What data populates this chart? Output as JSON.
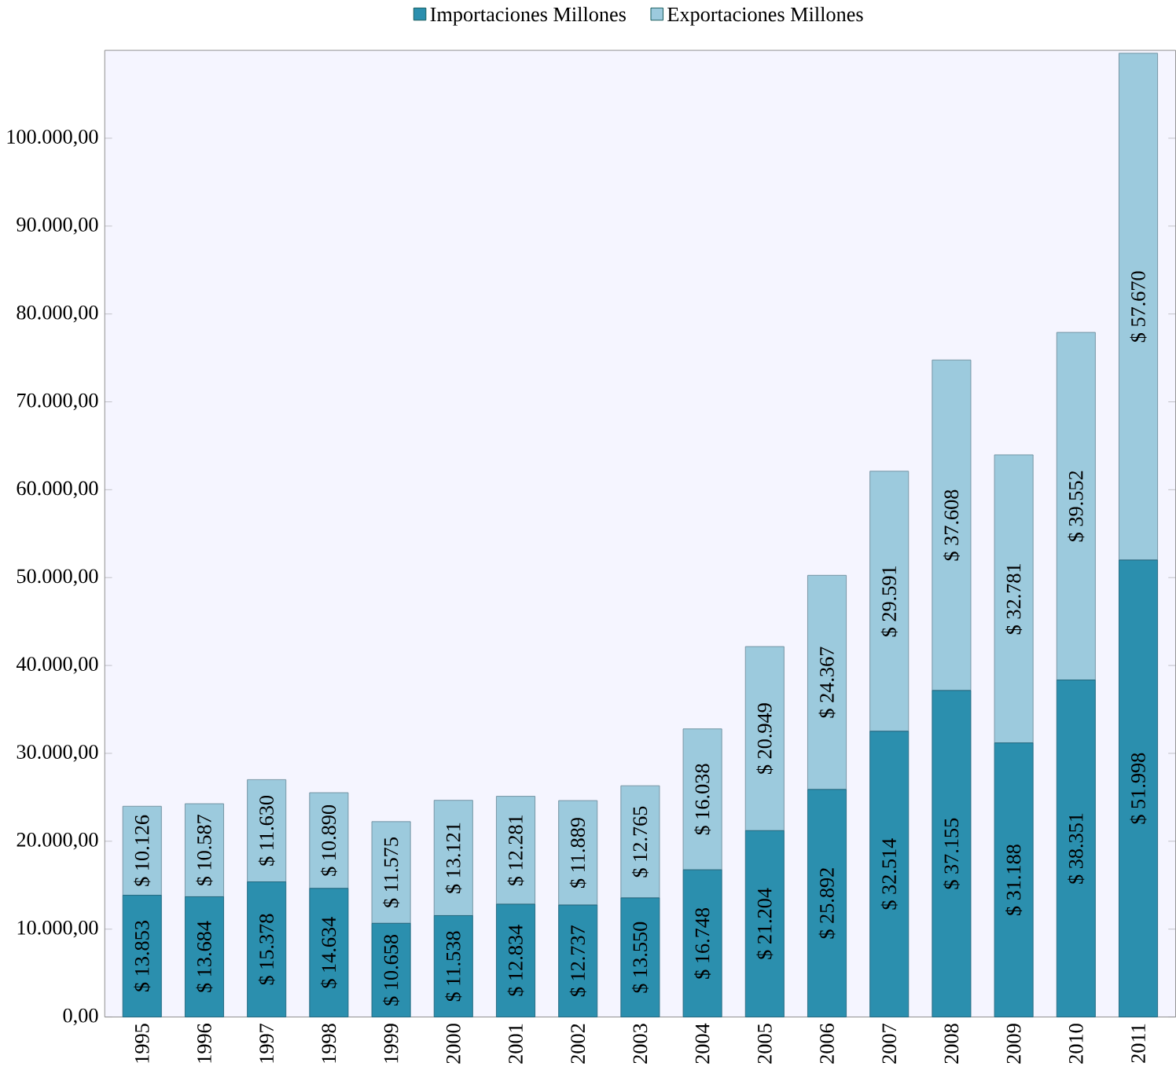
{
  "chart_data": {
    "type": "bar",
    "stacked": true,
    "legend": "top",
    "grid": false,
    "categories": [
      "1995",
      "1996",
      "1997",
      "1998",
      "1999",
      "2000",
      "2001",
      "2002",
      "2003",
      "2004",
      "2005",
      "2006",
      "2007",
      "2008",
      "2009",
      "2010",
      "2011"
    ],
    "ylim": [
      0,
      110000
    ],
    "yticks": [
      {
        "value": 0,
        "label": "0,00"
      },
      {
        "value": 10000,
        "label": "10.000,00"
      },
      {
        "value": 20000,
        "label": "20.000,00"
      },
      {
        "value": 30000,
        "label": "30.000,00"
      },
      {
        "value": 40000,
        "label": "40.000,00"
      },
      {
        "value": 50000,
        "label": "50.000,00"
      },
      {
        "value": 60000,
        "label": "60.000,00"
      },
      {
        "value": 70000,
        "label": "70.000,00"
      },
      {
        "value": 80000,
        "label": "80.000,00"
      },
      {
        "value": 90000,
        "label": "90.000,00"
      },
      {
        "value": 100000,
        "label": "100.000,00"
      }
    ],
    "series": [
      {
        "name": "Importaciones Millones",
        "color": "#2b8fae",
        "values": [
          13853,
          13684,
          15378,
          14634,
          10658,
          11538,
          12834,
          12737,
          13550,
          16748,
          21204,
          25892,
          32514,
          37155,
          31188,
          38351,
          51998
        ],
        "value_labels": [
          "$ 13.853",
          "$ 13.684",
          "$ 15.378",
          "$ 14.634",
          "$ 10.658",
          "$ 11.538",
          "$ 12.834",
          "$ 12.737",
          "$ 13.550",
          "$ 16.748",
          "$ 21.204",
          "$ 25.892",
          "$ 32.514",
          "$ 37.155",
          "$ 31.188",
          "$ 38.351",
          "$ 51.998"
        ]
      },
      {
        "name": "Exportaciones Millones",
        "color": "#9ccadd",
        "values": [
          10126,
          10587,
          11630,
          10890,
          11575,
          13121,
          12281,
          11889,
          12765,
          16038,
          20949,
          24367,
          29591,
          37608,
          32781,
          39552,
          57670
        ],
        "value_labels": [
          "$ 10.126",
          "$ 10.587",
          "$ 11.630",
          "$ 10.890",
          "$ 11.575",
          "$ 13.121",
          "$ 12.281",
          "$ 11.889",
          "$ 12.765",
          "$ 16.038",
          "$ 20.949",
          "$ 24.367",
          "$ 29.591",
          "$ 37.608",
          "$ 32.781",
          "$ 39.552",
          "$ 57.670"
        ]
      }
    ]
  }
}
